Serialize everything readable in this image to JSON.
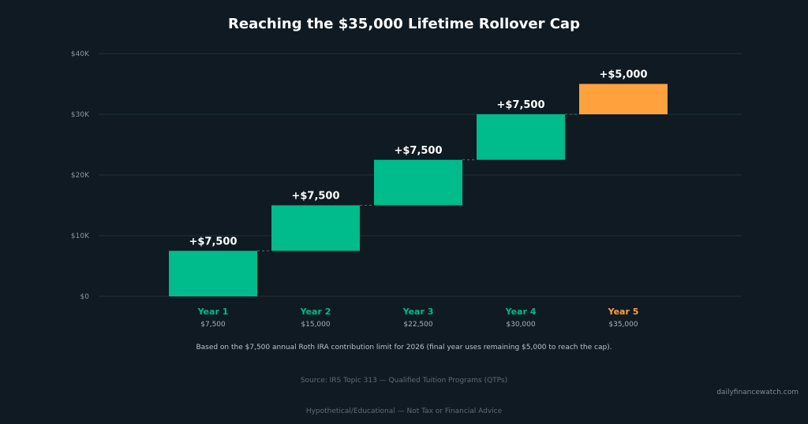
{
  "chart_data": {
    "type": "bar",
    "subtype": "waterfall",
    "title": "Reaching the $35,000 Lifetime Rollover Cap",
    "xlabel": "",
    "ylabel": "",
    "ylim": [
      0,
      40000
    ],
    "yticks": [
      0,
      10000,
      20000,
      30000,
      40000
    ],
    "ytick_labels": [
      "$0",
      "$10K",
      "$20K",
      "$30K",
      "$40K"
    ],
    "grid": true,
    "categories": [
      "Year 1",
      "Year 2",
      "Year 3",
      "Year 4",
      "Year 5"
    ],
    "increments": [
      7500,
      7500,
      7500,
      7500,
      5000
    ],
    "cumulative": [
      7500,
      15000,
      22500,
      30000,
      35000
    ],
    "bar_labels": [
      "+$7,500",
      "+$7,500",
      "+$7,500",
      "+$7,500",
      "+$5,000"
    ],
    "cumulative_labels": [
      "$7,500",
      "$15,000",
      "$22,500",
      "$30,000",
      "$35,000"
    ],
    "bar_colors": [
      "#00bb8c",
      "#00bb8c",
      "#00bb8c",
      "#00bb8c",
      "#ffa23d"
    ]
  },
  "footnote": "Based on the $7,500 annual Roth IRA contribution limit for 2026 (final year uses remaining $5,000 to reach the cap).",
  "source": "Source: IRS Topic 313 — Qualified Tuition Programs (QTPs)",
  "watermark": "dailyfinancewatch.com",
  "disclaimer": "Hypothetical/Educational — Not Tax or Financial Advice",
  "colors": {
    "background": "#0f1a22",
    "increase": "#00bb8c",
    "final": "#ffa23d"
  }
}
